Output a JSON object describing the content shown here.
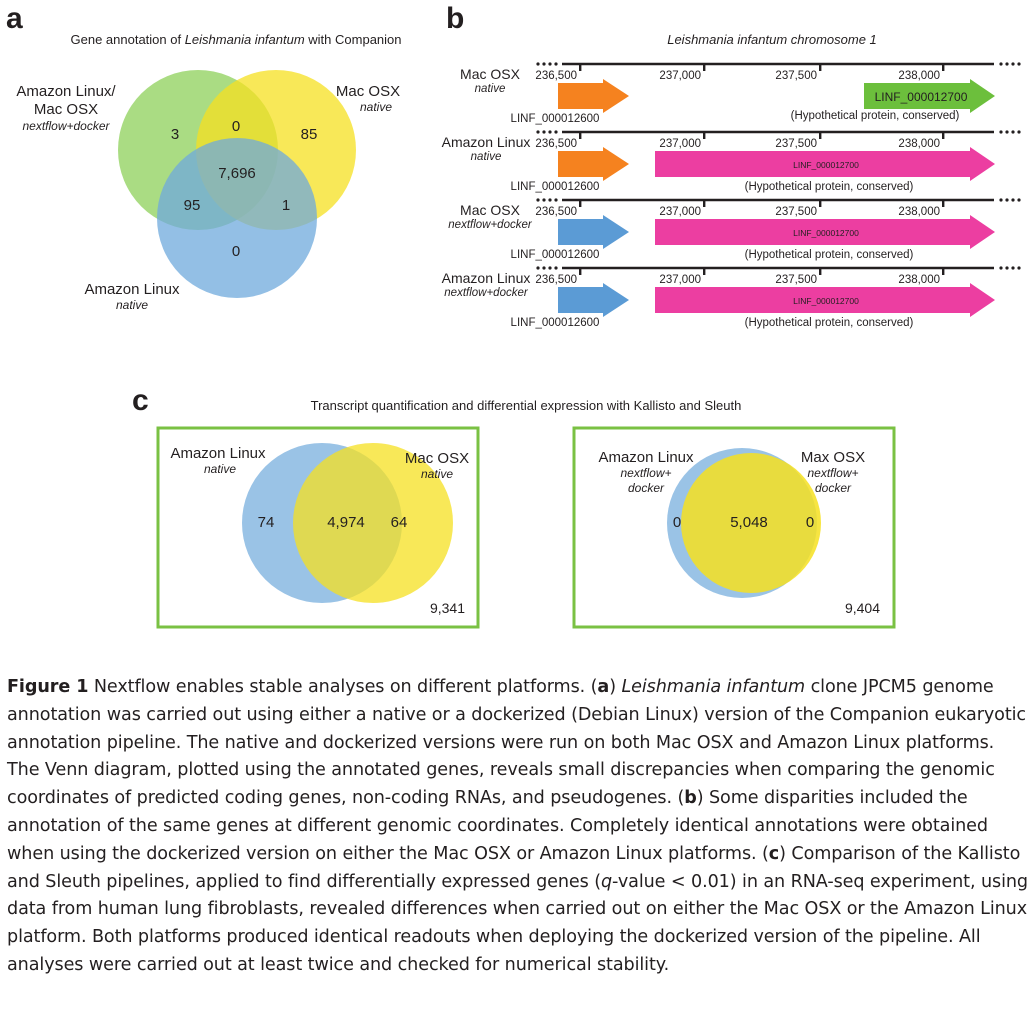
{
  "panel_a": {
    "letter": "a",
    "title_pre": "Gene annotation of ",
    "title_species": "Leishmania infantum",
    "title_post": " with Companion",
    "sets": {
      "green": {
        "name_line1": "Amazon Linux/",
        "name_line2": "Mac OSX",
        "sub": "nextflow+docker",
        "color": "#8ed05a"
      },
      "yellow": {
        "name": "Mac OSX",
        "sub": "native",
        "color": "#f6e020"
      },
      "blue": {
        "name": "Amazon Linux",
        "sub": "native",
        "color": "#6fa9dc"
      }
    },
    "regions": {
      "green_only": "3",
      "green_yellow": "0",
      "yellow_only": "85",
      "all_three": "7,696",
      "green_blue": "95",
      "yellow_blue": "1",
      "blue_only": "0"
    }
  },
  "panel_b": {
    "letter": "b",
    "title": "Leishmania infantum chromosome 1",
    "ticks": [
      "236,500",
      "237,000",
      "237,500",
      "238,000"
    ],
    "gene_left": "LINF_000012600",
    "hyp_label": "(Hypothetical protein, conserved)",
    "tracks": [
      {
        "platform": "Mac OSX",
        "mode": "native",
        "left_color": "#f5821f",
        "right_color": "#6cbf3c",
        "right_label": "LINF_000012700",
        "right_long": false
      },
      {
        "platform": "Amazon Linux",
        "mode": "native",
        "left_color": "#f5821f",
        "right_color": "#ec3ea1",
        "right_label": "LINF_000012700",
        "right_long": true
      },
      {
        "platform": "Mac OSX",
        "mode": "nextflow+docker",
        "left_color": "#5b9bd5",
        "right_color": "#ec3ea1",
        "right_label": "LINF_000012700",
        "right_long": true
      },
      {
        "platform": "Amazon Linux",
        "mode": "nextflow+docker",
        "left_color": "#5b9bd5",
        "right_color": "#ec3ea1",
        "right_label": "LINF_000012700",
        "right_long": true
      }
    ]
  },
  "panel_c": {
    "letter": "c",
    "title": "Transcript quantification and differential expression with Kallisto and Sleuth",
    "box_color": "#7ac143",
    "left": {
      "a_name": "Amazon Linux",
      "a_sub": "native",
      "b_name": "Mac OSX",
      "b_sub": "native",
      "a_only": "74",
      "both": "4,974",
      "b_only": "64",
      "total": "9,341"
    },
    "right": {
      "a_name": "Amazon Linux",
      "a_sub1": "nextflow+",
      "a_sub2": "docker",
      "b_name": "Max OSX",
      "b_sub1": "nextflow+",
      "b_sub2": "docker",
      "a_only": "0",
      "both": "5,048",
      "b_only": "0",
      "total": "9,404"
    }
  },
  "caption": {
    "label": "Figure 1",
    "s1": "Nextflow enables stable analyses on different platforms. (",
    "la": "a",
    "s2": ") ",
    "species": "Leishmania infantum",
    "s3": " clone JPCM5 genome annotation was carried out using either a native or a dockerized (Debian Linux) version of the Companion eukaryotic annotation pipeline. The native and dockerized versions were run on both Mac OSX and Amazon Linux platforms. The Venn diagram, plotted using the annotated genes, reveals small discrepancies when comparing the genomic coordinates of predicted coding genes, non-coding RNAs, and pseudogenes. (",
    "lb": "b",
    "s4": ") Some disparities included the annotation of the same genes at different genomic coordinates. Completely identical annotations were obtained when using the dockerized version on either the Mac OSX or Amazon Linux platforms. (",
    "lc": "c",
    "s5": ") Comparison of the Kallisto and Sleuth pipelines, applied to find differentially expressed genes (",
    "q": "q",
    "s6": "-value < 0.01) in an RNA-seq experiment, using data from human lung fibroblasts, revealed differences when carried out on either the Mac OSX or the Amazon Linux platform. Both platforms produced identical readouts when deploying the dockerized version of the pipeline. All analyses were carried out at least twice and checked for numerical stability."
  }
}
